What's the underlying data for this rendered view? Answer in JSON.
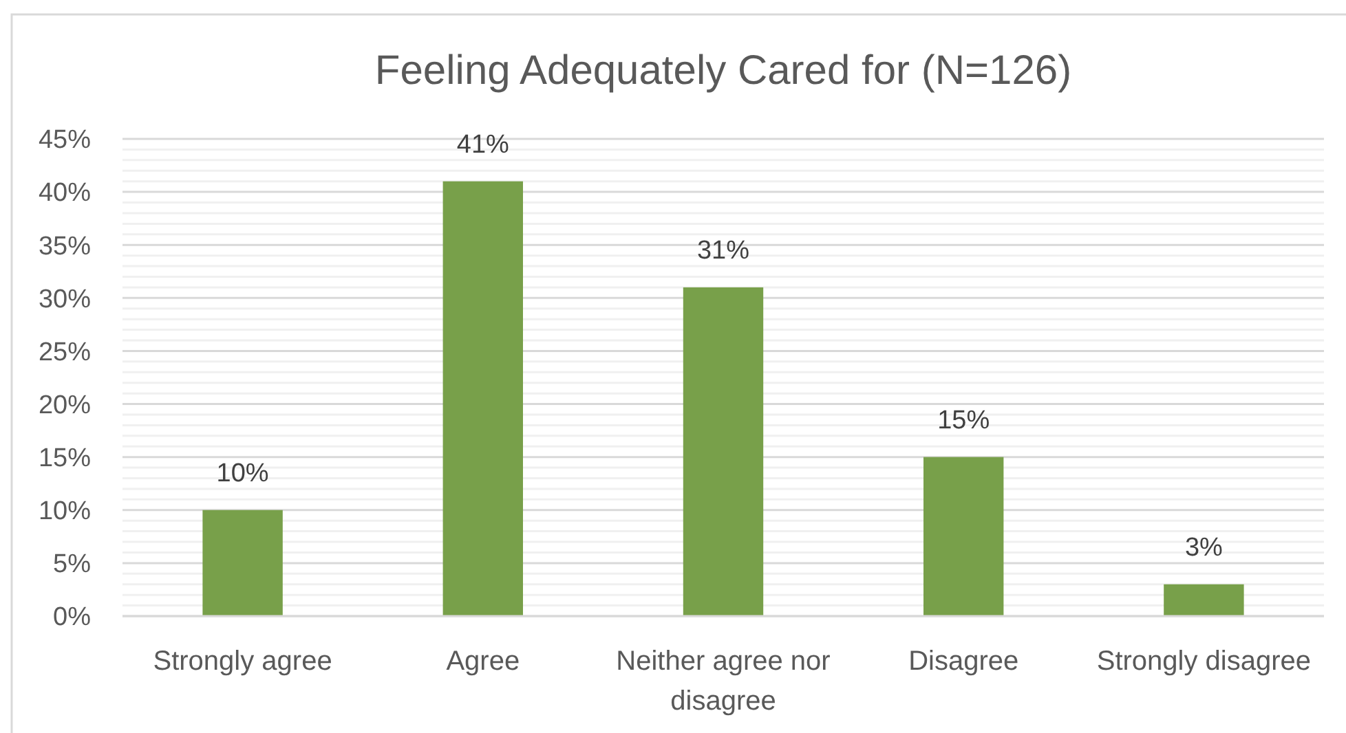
{
  "chart_data": {
    "type": "bar",
    "title": "Feeling Adequately Cared for (N=126)",
    "categories": [
      "Strongly agree",
      "Agree",
      "Neither agree nor disagree",
      "Disagree",
      "Strongly disagree"
    ],
    "values": [
      10,
      41,
      31,
      15,
      3
    ],
    "color": "#78a04a",
    "value_labels": [
      "10%",
      "41%",
      "31%",
      "15%",
      "3%"
    ],
    "ylim": [
      0,
      45
    ],
    "yticks": [
      {
        "value": 0,
        "label": "0%"
      },
      {
        "value": 5,
        "label": "5%"
      },
      {
        "value": 10,
        "label": "10%"
      },
      {
        "value": 15,
        "label": "15%"
      },
      {
        "value": 20,
        "label": "20%"
      },
      {
        "value": 25,
        "label": "25%"
      },
      {
        "value": 30,
        "label": "30%"
      },
      {
        "value": 35,
        "label": "35%"
      },
      {
        "value": 40,
        "label": "40%"
      },
      {
        "value": 45,
        "label": "45%"
      }
    ],
    "grid": "y"
  }
}
